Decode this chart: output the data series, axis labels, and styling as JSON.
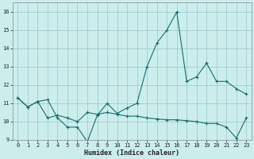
{
  "xlabel": "Humidex (Indice chaleur)",
  "background_color": "#cbeeed",
  "grid_color": "#a0cccc",
  "line_color": "#1a6b6b",
  "line1_y": [
    11.3,
    10.8,
    11.1,
    11.2,
    10.2,
    9.7,
    9.7,
    8.9,
    10.35,
    11.0,
    10.45,
    10.75,
    11.0,
    13.0,
    14.3,
    15.0,
    16.0,
    12.2,
    12.45,
    13.2,
    12.2,
    12.2,
    11.8,
    11.5
  ],
  "line2_y": [
    11.3,
    10.8,
    11.1,
    10.2,
    10.35,
    10.2,
    10.0,
    10.5,
    10.4,
    10.5,
    10.4,
    10.3,
    10.3,
    10.2,
    10.15,
    10.1,
    10.1,
    10.05,
    10.0,
    9.9,
    9.9,
    9.7,
    9.1,
    10.2
  ],
  "x": [
    0,
    1,
    2,
    3,
    4,
    5,
    6,
    7,
    8,
    9,
    10,
    11,
    12,
    13,
    14,
    15,
    16,
    17,
    18,
    19,
    20,
    21,
    22,
    23
  ],
  "xlim": [
    -0.5,
    23.5
  ],
  "ylim": [
    9,
    16.5
  ],
  "yticks": [
    9,
    10,
    11,
    12,
    13,
    14,
    15,
    16
  ],
  "xticks": [
    0,
    1,
    2,
    3,
    4,
    5,
    6,
    7,
    8,
    9,
    10,
    11,
    12,
    13,
    14,
    15,
    16,
    17,
    18,
    19,
    20,
    21,
    22,
    23
  ],
  "tick_fontsize": 5.0,
  "xlabel_fontsize": 6.0
}
